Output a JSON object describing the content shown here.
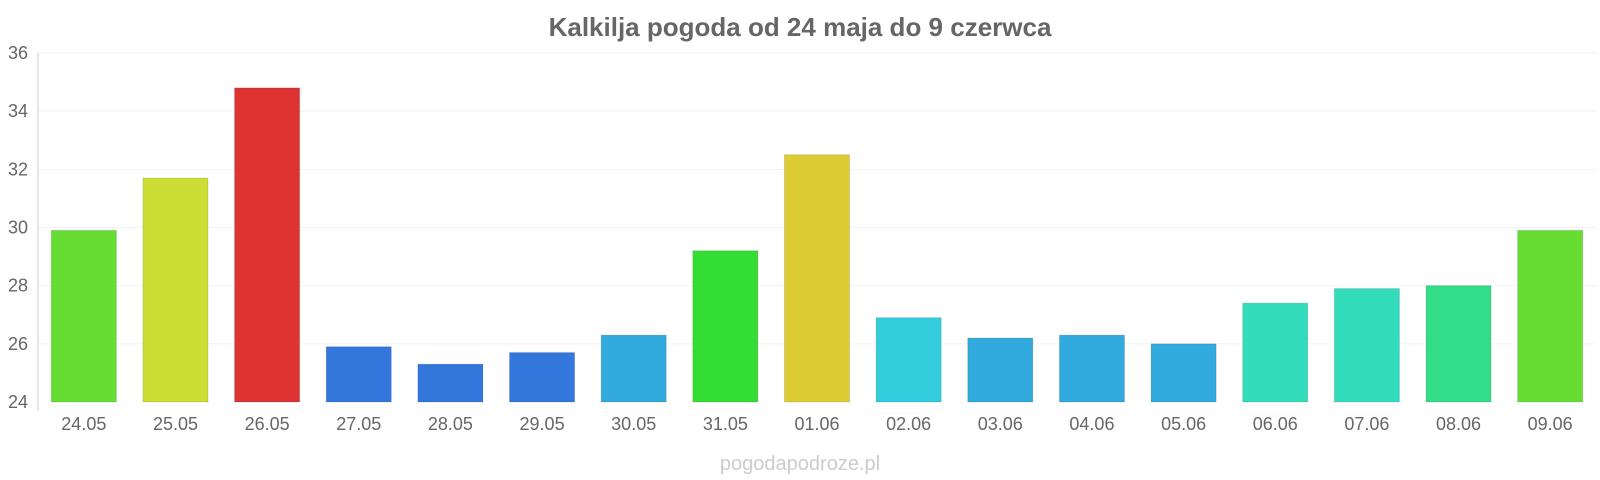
{
  "chart_data": {
    "type": "bar",
    "title": "Kalkilja pogoda od 24 maja do 9 czerwca",
    "xlabel": "",
    "ylabel": "",
    "ylim": [
      24,
      36
    ],
    "yticks": [
      "24",
      "26",
      "28",
      "30",
      "32",
      "34",
      "36"
    ],
    "grid": true,
    "categories": [
      "24.05",
      "25.05",
      "26.05",
      "27.05",
      "28.05",
      "29.05",
      "30.05",
      "31.05",
      "01.06",
      "02.06",
      "03.06",
      "04.06",
      "05.06",
      "06.06",
      "07.06",
      "08.06",
      "09.06"
    ],
    "values": [
      29.9,
      31.7,
      34.8,
      25.9,
      25.3,
      25.7,
      26.3,
      29.2,
      32.5,
      26.9,
      26.2,
      26.3,
      26.0,
      27.4,
      27.9,
      28.0,
      29.9
    ],
    "colors": [
      "#66dd33",
      "#ccdd33",
      "#dd3333",
      "#3377dd",
      "#3377dd",
      "#3377dd",
      "#33aadd",
      "#33dd33",
      "#ddcc33",
      "#33ccdd",
      "#33aadd",
      "#33aadd",
      "#33aadd",
      "#33ddbb",
      "#33ddbb",
      "#33dd88",
      "#66dd33"
    ]
  },
  "watermark": "pogodapodroze.pl"
}
